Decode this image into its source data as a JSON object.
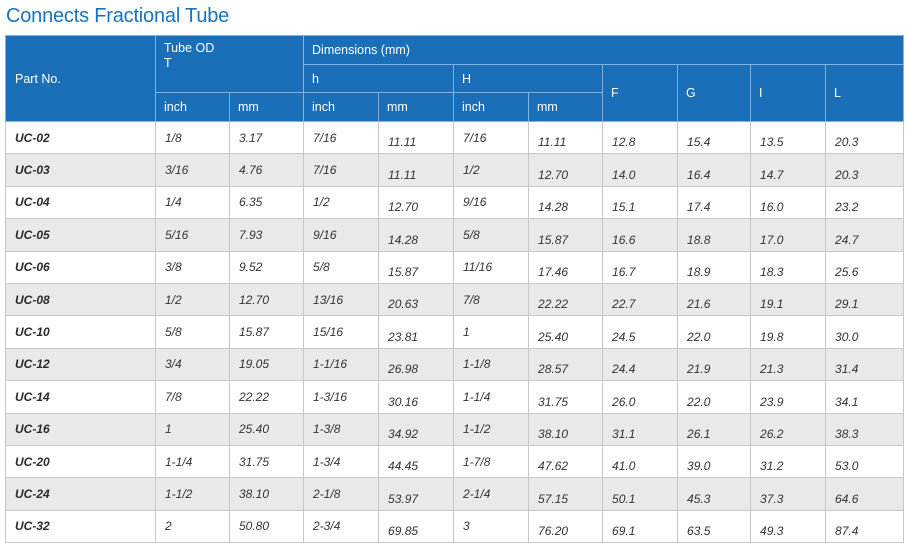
{
  "title": "Connects Fractional Tube",
  "headers": {
    "part_no": "Part No.",
    "tube_od": "Tube OD",
    "tube_od_symbol": "T",
    "dimensions": "Dimensions (mm)",
    "h_lower": "h",
    "h_upper": "H",
    "F": "F",
    "G": "G",
    "I": "I",
    "L": "L",
    "inch": "inch",
    "mm": "mm"
  },
  "rows": [
    [
      "UC-02",
      "1/8",
      "3.17",
      "7/16",
      "11.11",
      "7/16",
      "11.11",
      "12.8",
      "15.4",
      "13.5",
      "20.3"
    ],
    [
      "UC-03",
      "3/16",
      "4.76",
      "7/16",
      "11.11",
      "1/2",
      "12.70",
      "14.0",
      "16.4",
      "14.7",
      "20.3"
    ],
    [
      "UC-04",
      "1/4",
      "6.35",
      "1/2",
      "12.70",
      "9/16",
      "14.28",
      "15.1",
      "17.4",
      "16.0",
      "23.2"
    ],
    [
      "UC-05",
      "5/16",
      "7.93",
      "9/16",
      "14.28",
      "5/8",
      "15.87",
      "16.6",
      "18.8",
      "17.0",
      "24.7"
    ],
    [
      "UC-06",
      "3/8",
      "9.52",
      "5/8",
      "15.87",
      "11/16",
      "17.46",
      "16.7",
      "18.9",
      "18.3",
      "25.6"
    ],
    [
      "UC-08",
      "1/2",
      "12.70",
      "13/16",
      "20.63",
      "7/8",
      "22.22",
      "22.7",
      "21.6",
      "19.1",
      "29.1"
    ],
    [
      "UC-10",
      "5/8",
      "15.87",
      "15/16",
      "23.81",
      "1",
      "25.40",
      "24.5",
      "22.0",
      "19.8",
      "30.0"
    ],
    [
      "UC-12",
      "3/4",
      "19.05",
      "1-1/16",
      "26.98",
      "1-1/8",
      "28.57",
      "24.4",
      "21.9",
      "21.3",
      "31.4"
    ],
    [
      "UC-14",
      "7/8",
      "22.22",
      "1-3/16",
      "30.16",
      "1-1/4",
      "31.75",
      "26.0",
      "22.0",
      "23.9",
      "34.1"
    ],
    [
      "UC-16",
      "1",
      "25.40",
      "1-3/8",
      "34.92",
      "1-1/2",
      "38.10",
      "31.1",
      "26.1",
      "26.2",
      "38.3"
    ],
    [
      "UC-20",
      "1-1/4",
      "31.75",
      "1-3/4",
      "44.45",
      "1-7/8",
      "47.62",
      "41.0",
      "39.0",
      "31.2",
      "53.0"
    ],
    [
      "UC-24",
      "1-1/2",
      "38.10",
      "2-1/8",
      "53.97",
      "2-1/4",
      "57.15",
      "50.1",
      "45.3",
      "37.3",
      "64.6"
    ],
    [
      "UC-32",
      "2",
      "50.80",
      "2-3/4",
      "69.85",
      "3",
      "76.20",
      "69.1",
      "63.5",
      "49.3",
      "87.4"
    ]
  ]
}
